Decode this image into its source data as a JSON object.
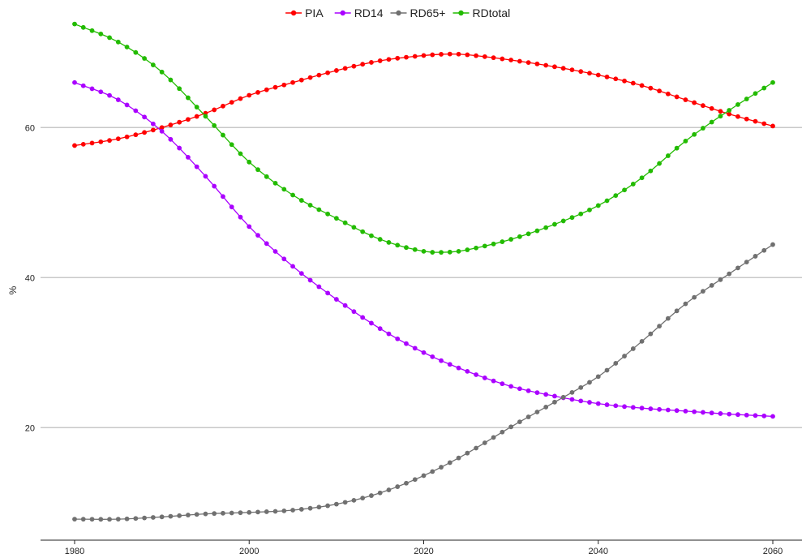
{
  "chart_data": {
    "type": "line",
    "title": "",
    "xlabel": "",
    "ylabel": "%",
    "xlim": [
      1980,
      2060
    ],
    "ylim": [
      5,
      77
    ],
    "x_ticks": [
      1980,
      2000,
      2020,
      2040,
      2060
    ],
    "y_ticks": [
      20,
      40,
      60
    ],
    "grid": "horizontal",
    "legend_position": "top-center",
    "x_start": 1980,
    "x_end": 2060,
    "series": [
      {
        "name": "PIA",
        "color": "#ff0000",
        "anchors": [
          [
            1980,
            57.6
          ],
          [
            1985,
            58.5
          ],
          [
            1990,
            60.0
          ],
          [
            1995,
            61.9
          ],
          [
            2000,
            64.3
          ],
          [
            2005,
            66.0
          ],
          [
            2010,
            67.6
          ],
          [
            2015,
            68.9
          ],
          [
            2020,
            69.6
          ],
          [
            2023,
            69.8
          ],
          [
            2025,
            69.7
          ],
          [
            2030,
            69.0
          ],
          [
            2035,
            68.1
          ],
          [
            2040,
            67.0
          ],
          [
            2045,
            65.6
          ],
          [
            2050,
            63.7
          ],
          [
            2055,
            61.8
          ],
          [
            2060,
            60.2
          ]
        ]
      },
      {
        "name": "RD14",
        "color": "#aa00ff",
        "anchors": [
          [
            1980,
            66.0
          ],
          [
            1985,
            63.7
          ],
          [
            1990,
            59.5
          ],
          [
            1995,
            53.5
          ],
          [
            2000,
            46.8
          ],
          [
            2005,
            41.5
          ],
          [
            2010,
            37.1
          ],
          [
            2015,
            33.2
          ],
          [
            2020,
            30.0
          ],
          [
            2025,
            27.5
          ],
          [
            2030,
            25.5
          ],
          [
            2035,
            24.2
          ],
          [
            2040,
            23.2
          ],
          [
            2045,
            22.6
          ],
          [
            2050,
            22.2
          ],
          [
            2055,
            21.8
          ],
          [
            2060,
            21.5
          ]
        ]
      },
      {
        "name": "RD65+",
        "color": "#707070",
        "anchors": [
          [
            1980,
            7.8
          ],
          [
            1985,
            7.8
          ],
          [
            1990,
            8.1
          ],
          [
            1995,
            8.5
          ],
          [
            2000,
            8.7
          ],
          [
            2005,
            9.0
          ],
          [
            2010,
            9.8
          ],
          [
            2015,
            11.3
          ],
          [
            2020,
            13.6
          ],
          [
            2025,
            16.6
          ],
          [
            2030,
            20.1
          ],
          [
            2035,
            23.4
          ],
          [
            2040,
            26.8
          ],
          [
            2045,
            31.5
          ],
          [
            2050,
            36.5
          ],
          [
            2055,
            40.5
          ],
          [
            2060,
            44.4
          ]
        ]
      },
      {
        "name": "RDtotal",
        "color": "#22bb00",
        "anchors": [
          [
            1980,
            73.8
          ],
          [
            1985,
            71.4
          ],
          [
            1990,
            67.4
          ],
          [
            1995,
            61.5
          ],
          [
            2000,
            55.4
          ],
          [
            2005,
            51.0
          ],
          [
            2010,
            47.9
          ],
          [
            2015,
            45.1
          ],
          [
            2020,
            43.5
          ],
          [
            2023,
            43.4
          ],
          [
            2025,
            43.7
          ],
          [
            2030,
            45.1
          ],
          [
            2035,
            47.1
          ],
          [
            2040,
            49.6
          ],
          [
            2045,
            53.3
          ],
          [
            2050,
            58.2
          ],
          [
            2055,
            62.3
          ],
          [
            2060,
            66.0
          ]
        ]
      }
    ]
  }
}
